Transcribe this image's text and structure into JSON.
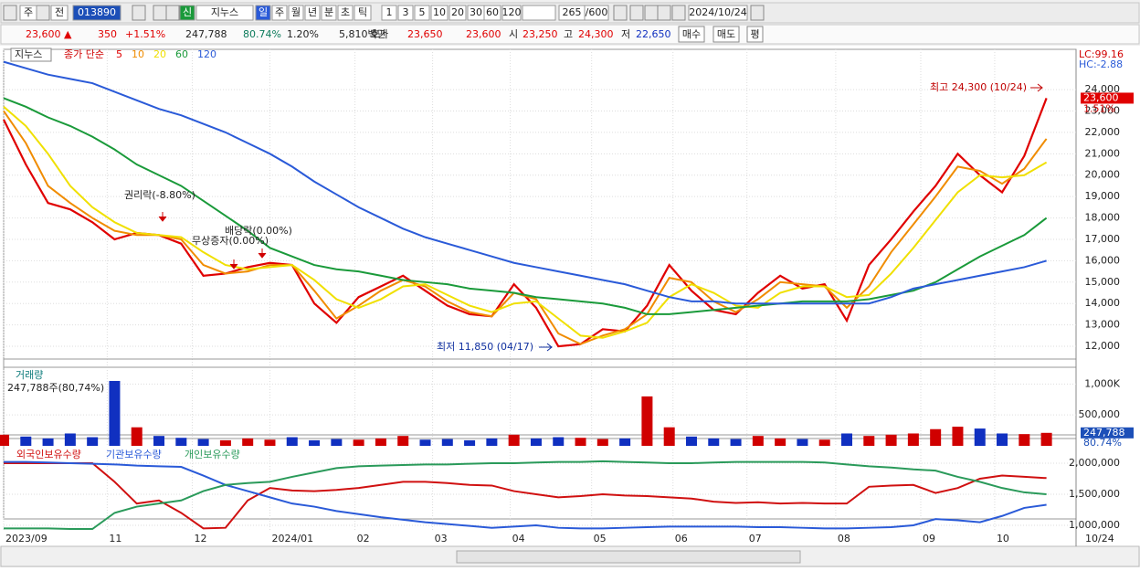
{
  "toolbar": {
    "items": [
      "주",
      "전",
      "013890",
      "신",
      "지누스",
      "일",
      "주",
      "월",
      "년",
      "분",
      "초",
      "틱",
      "1",
      "3",
      "5",
      "10",
      "20",
      "30",
      "60",
      "120",
      "265",
      "/600",
      "2024/10/24"
    ]
  },
  "quote": {
    "items": [
      "23,600 ▲",
      "350",
      "+1.51%",
      "247,788",
      "80.74%",
      "1.20%",
      "5,810백만",
      "호가",
      "23,650",
      "23,600",
      "시",
      "23,250",
      "고",
      "24,300",
      "저",
      "22,650"
    ],
    "buttons": [
      "매수",
      "매도",
      "평"
    ]
  },
  "chart_data": [
    {
      "type": "line",
      "name": "지누스",
      "legend_title": "종가 단순",
      "x": [
        0,
        6,
        12,
        18,
        24,
        30,
        36,
        42,
        48,
        54,
        60,
        66,
        72,
        78,
        84,
        90,
        96,
        102,
        108,
        114,
        120,
        126,
        132,
        138,
        144,
        150,
        156,
        162,
        168,
        174,
        180,
        186,
        192,
        198,
        204,
        210,
        216,
        222,
        228,
        234,
        240,
        246,
        252,
        258,
        264,
        270,
        276,
        282
      ],
      "xlim": [
        0,
        290
      ],
      "xticks": [
        {
          "value": 0,
          "label": "2023/09"
        },
        {
          "value": 28,
          "label": "11"
        },
        {
          "value": 51,
          "label": "12"
        },
        {
          "value": 72,
          "label": "2024/01"
        },
        {
          "value": 95,
          "label": "02"
        },
        {
          "value": 116,
          "label": "03"
        },
        {
          "value": 137,
          "label": "04"
        },
        {
          "value": 159,
          "label": "05"
        },
        {
          "value": 181,
          "label": "06"
        },
        {
          "value": 201,
          "label": "07"
        },
        {
          "value": 225,
          "label": "08"
        },
        {
          "value": 248,
          "label": "09"
        },
        {
          "value": 268,
          "label": "10"
        }
      ],
      "ylim": [
        11020,
        25370
      ],
      "yticks": [
        {
          "value": 12000,
          "label": "12,000"
        },
        {
          "value": 13000,
          "label": "13,000"
        },
        {
          "value": 14000,
          "label": "14,000"
        },
        {
          "value": 15000,
          "label": "15,000"
        },
        {
          "value": 16000,
          "label": "16,000"
        },
        {
          "value": 17000,
          "label": "17,000"
        },
        {
          "value": 18000,
          "label": "18,000"
        },
        {
          "value": 19000,
          "label": "19,000"
        },
        {
          "value": 20000,
          "label": "20,000"
        },
        {
          "value": 21000,
          "label": "21,000"
        },
        {
          "value": 22000,
          "label": "22,000"
        },
        {
          "value": 23000,
          "label": "23,000"
        },
        {
          "value": 24000,
          "label": "24,000"
        }
      ],
      "grid": true,
      "series": [
        {
          "name": "5",
          "color": "#e00000",
          "values": [
            22600,
            20500,
            18700,
            18400,
            17800,
            17000,
            17300,
            17200,
            16800,
            15300,
            15400,
            15700,
            15900,
            15800,
            14000,
            13100,
            14300,
            14800,
            15300,
            14600,
            13900,
            13500,
            13400,
            14900,
            13800,
            12000,
            12100,
            12800,
            12700,
            13900,
            15800,
            14600,
            13700,
            13500,
            14500,
            15300,
            14700,
            14900,
            13200,
            15800,
            17000,
            18300,
            19500,
            21000,
            20000,
            19200,
            20900,
            23600
          ]
        },
        {
          "name": "10",
          "color": "#f08c00",
          "values": [
            23000,
            21500,
            19500,
            18700,
            18000,
            17400,
            17200,
            17200,
            17000,
            15800,
            15400,
            15500,
            15800,
            15800,
            14600,
            13300,
            13900,
            14600,
            15100,
            14800,
            14100,
            13600,
            13400,
            14500,
            14200,
            12600,
            12100,
            12500,
            12800,
            13500,
            15200,
            15000,
            14100,
            13600,
            14200,
            15000,
            14900,
            14800,
            13800,
            14800,
            16400,
            17700,
            19000,
            20400,
            20200,
            19600,
            20300,
            21700
          ]
        },
        {
          "name": "20",
          "color": "#f0e000",
          "values": [
            23200,
            22300,
            21000,
            19500,
            18500,
            17800,
            17300,
            17200,
            17100,
            16400,
            15800,
            15600,
            15700,
            15800,
            15100,
            14200,
            13800,
            14200,
            14800,
            14900,
            14400,
            13900,
            13600,
            14000,
            14100,
            13300,
            12500,
            12400,
            12700,
            13100,
            14300,
            14900,
            14500,
            13900,
            13800,
            14500,
            14800,
            14800,
            14300,
            14400,
            15400,
            16600,
            17900,
            19200,
            20000,
            19900,
            20000,
            20600
          ]
        },
        {
          "name": "60",
          "color": "#1a9a3a",
          "values": [
            23600,
            23200,
            22700,
            22300,
            21800,
            21200,
            20500,
            20000,
            19500,
            18800,
            18100,
            17400,
            16600,
            16200,
            15800,
            15600,
            15500,
            15300,
            15100,
            15000,
            14900,
            14700,
            14600,
            14500,
            14300,
            14200,
            14100,
            14000,
            13800,
            13500,
            13500,
            13600,
            13700,
            13800,
            13900,
            14000,
            14100,
            14100,
            14100,
            14200,
            14400,
            14600,
            15000,
            15600,
            16200,
            16700,
            17200,
            18000
          ]
        },
        {
          "name": "120",
          "color": "#2a5ad8",
          "values": [
            25300,
            25000,
            24700,
            24500,
            24300,
            23900,
            23500,
            23100,
            22800,
            22400,
            22000,
            21500,
            21000,
            20400,
            19700,
            19100,
            18500,
            18000,
            17500,
            17100,
            16800,
            16500,
            16200,
            15900,
            15700,
            15500,
            15300,
            15100,
            14900,
            14600,
            14300,
            14100,
            14100,
            14000,
            14000,
            14000,
            14000,
            14000,
            14000,
            14000,
            14300,
            14700,
            14900,
            15100,
            15300,
            15500,
            15700,
            16000
          ]
        }
      ],
      "annotations": [
        "최고 24,300 (10/24)",
        "최저 11,850 (04/17)",
        "권리락(-8.80%)",
        "무상증자(0.00%)",
        "배당락(0.00%)"
      ],
      "side_labels": [
        "LC:99.16",
        "HC:-2.88"
      ],
      "last_label": "23,600",
      "change_label": "1.51%"
    },
    {
      "type": "bar",
      "title": "거래량",
      "subtitle": "247,788주(80,74%)",
      "color_up": "#d00000",
      "color_down": "#1030c0",
      "ylim": [
        0,
        1227000
      ],
      "yticks": [
        {
          "value": 500000,
          "label": "500,000"
        },
        {
          "value": 1000000,
          "label": "1,000K"
        }
      ],
      "values": [
        180000,
        150000,
        120000,
        200000,
        140000,
        1050000,
        300000,
        160000,
        130000,
        110000,
        90000,
        120000,
        100000,
        140000,
        90000,
        110000,
        100000,
        120000,
        160000,
        100000,
        110000,
        90000,
        120000,
        180000,
        120000,
        140000,
        130000,
        110000,
        120000,
        800000,
        300000,
        150000,
        120000,
        110000,
        160000,
        120000,
        110000,
        100000,
        200000,
        160000,
        180000,
        200000,
        270000,
        310000,
        280000,
        200000,
        190000,
        210000
      ],
      "last_label": "247,788",
      "ratio_label": "80.74%"
    },
    {
      "type": "line",
      "ylim": [
        926000,
        2220000
      ],
      "yticks": [
        {
          "value": 1000000,
          "label": "1,000,000"
        },
        {
          "value": 1500000,
          "label": "1,500,000"
        },
        {
          "value": 2000000,
          "label": "2,000,000"
        }
      ],
      "series": [
        {
          "name": "외국인보유수량",
          "color": "#d01010",
          "values": [
            2000000,
            2000000,
            2000000,
            2000000,
            2000000,
            1700000,
            1350000,
            1400000,
            1200000,
            950000,
            960000,
            1400000,
            1600000,
            1560000,
            1550000,
            1570000,
            1600000,
            1650000,
            1700000,
            1700000,
            1680000,
            1650000,
            1640000,
            1550000,
            1500000,
            1450000,
            1470000,
            1500000,
            1480000,
            1470000,
            1450000,
            1430000,
            1380000,
            1360000,
            1370000,
            1350000,
            1360000,
            1350000,
            1350000,
            1620000,
            1640000,
            1650000,
            1520000,
            1600000,
            1750000,
            1800000,
            1780000,
            1760000
          ]
        },
        {
          "name": "기관보유수량",
          "color": "#2a5ad8",
          "values": [
            2020000,
            2020000,
            2010000,
            2000000,
            1990000,
            1980000,
            1960000,
            1950000,
            1940000,
            1800000,
            1650000,
            1550000,
            1450000,
            1350000,
            1300000,
            1230000,
            1180000,
            1130000,
            1090000,
            1050000,
            1020000,
            990000,
            960000,
            980000,
            1000000,
            960000,
            950000,
            950000,
            960000,
            970000,
            980000,
            980000,
            980000,
            980000,
            970000,
            970000,
            960000,
            950000,
            950000,
            960000,
            970000,
            1000000,
            1100000,
            1080000,
            1050000,
            1150000,
            1280000,
            1330000
          ]
        },
        {
          "name": "개인보유수량",
          "color": "#2a9a5a",
          "values": [
            950000,
            950000,
            950000,
            940000,
            940000,
            1200000,
            1300000,
            1350000,
            1400000,
            1550000,
            1650000,
            1680000,
            1700000,
            1780000,
            1850000,
            1920000,
            1950000,
            1960000,
            1970000,
            1980000,
            1980000,
            1990000,
            2000000,
            2000000,
            2010000,
            2020000,
            2020000,
            2030000,
            2020000,
            2010000,
            2000000,
            2000000,
            2010000,
            2020000,
            2020000,
            2020000,
            2020000,
            2010000,
            1980000,
            1950000,
            1930000,
            1900000,
            1880000,
            1780000,
            1700000,
            1600000,
            1530000,
            1500000
          ]
        }
      ],
      "end_label": "10/24"
    }
  ]
}
